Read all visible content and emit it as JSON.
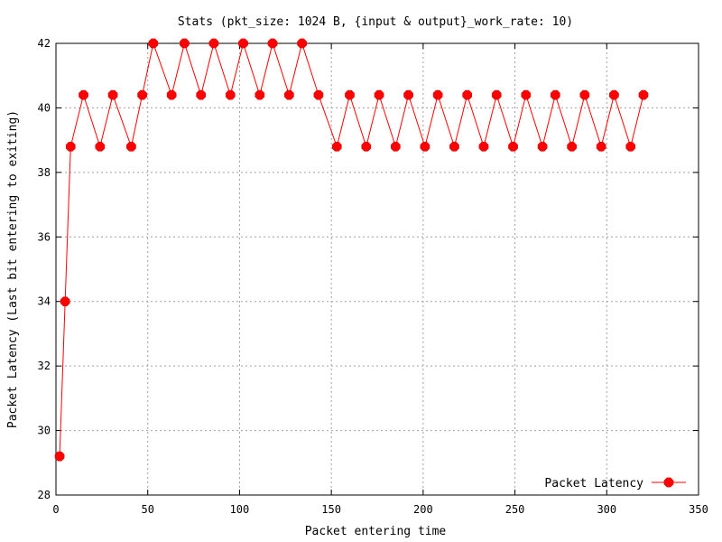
{
  "chart_data": {
    "type": "line",
    "title": "Stats (pkt_size: 1024 B, {input & output}_work_rate: 10)",
    "xlabel": "Packet entering time",
    "ylabel": "Packet Latency (Last bit entering to exiting)",
    "xlim": [
      0,
      350
    ],
    "ylim": [
      28,
      42
    ],
    "xticks": [
      0,
      50,
      100,
      150,
      200,
      250,
      300,
      350
    ],
    "yticks": [
      28,
      30,
      32,
      34,
      36,
      38,
      40,
      42
    ],
    "grid": true,
    "legend_position": "bottom-right",
    "series": [
      {
        "name": "Packet Latency",
        "color": "#ff0000",
        "marker": "octagon",
        "x": [
          2,
          5,
          8,
          15,
          24,
          31,
          41,
          47,
          53,
          63,
          70,
          79,
          86,
          95,
          102,
          111,
          118,
          127,
          134,
          143,
          153,
          160,
          169,
          176,
          185,
          192,
          201,
          208,
          217,
          224,
          233,
          240,
          249,
          256,
          265,
          272,
          281,
          288,
          297,
          304,
          313,
          320
        ],
        "y": [
          29.2,
          34.0,
          38.8,
          40.4,
          38.8,
          40.4,
          38.8,
          40.4,
          42.0,
          40.4,
          42.0,
          40.4,
          42.0,
          40.4,
          42.0,
          40.4,
          42.0,
          40.4,
          42.0,
          40.4,
          38.8,
          40.4,
          38.8,
          40.4,
          38.8,
          40.4,
          38.8,
          40.4,
          38.8,
          40.4,
          38.8,
          40.4,
          38.8,
          40.4,
          38.8,
          40.4,
          38.8,
          40.4,
          38.8,
          40.4,
          38.8,
          40.4
        ]
      }
    ]
  }
}
